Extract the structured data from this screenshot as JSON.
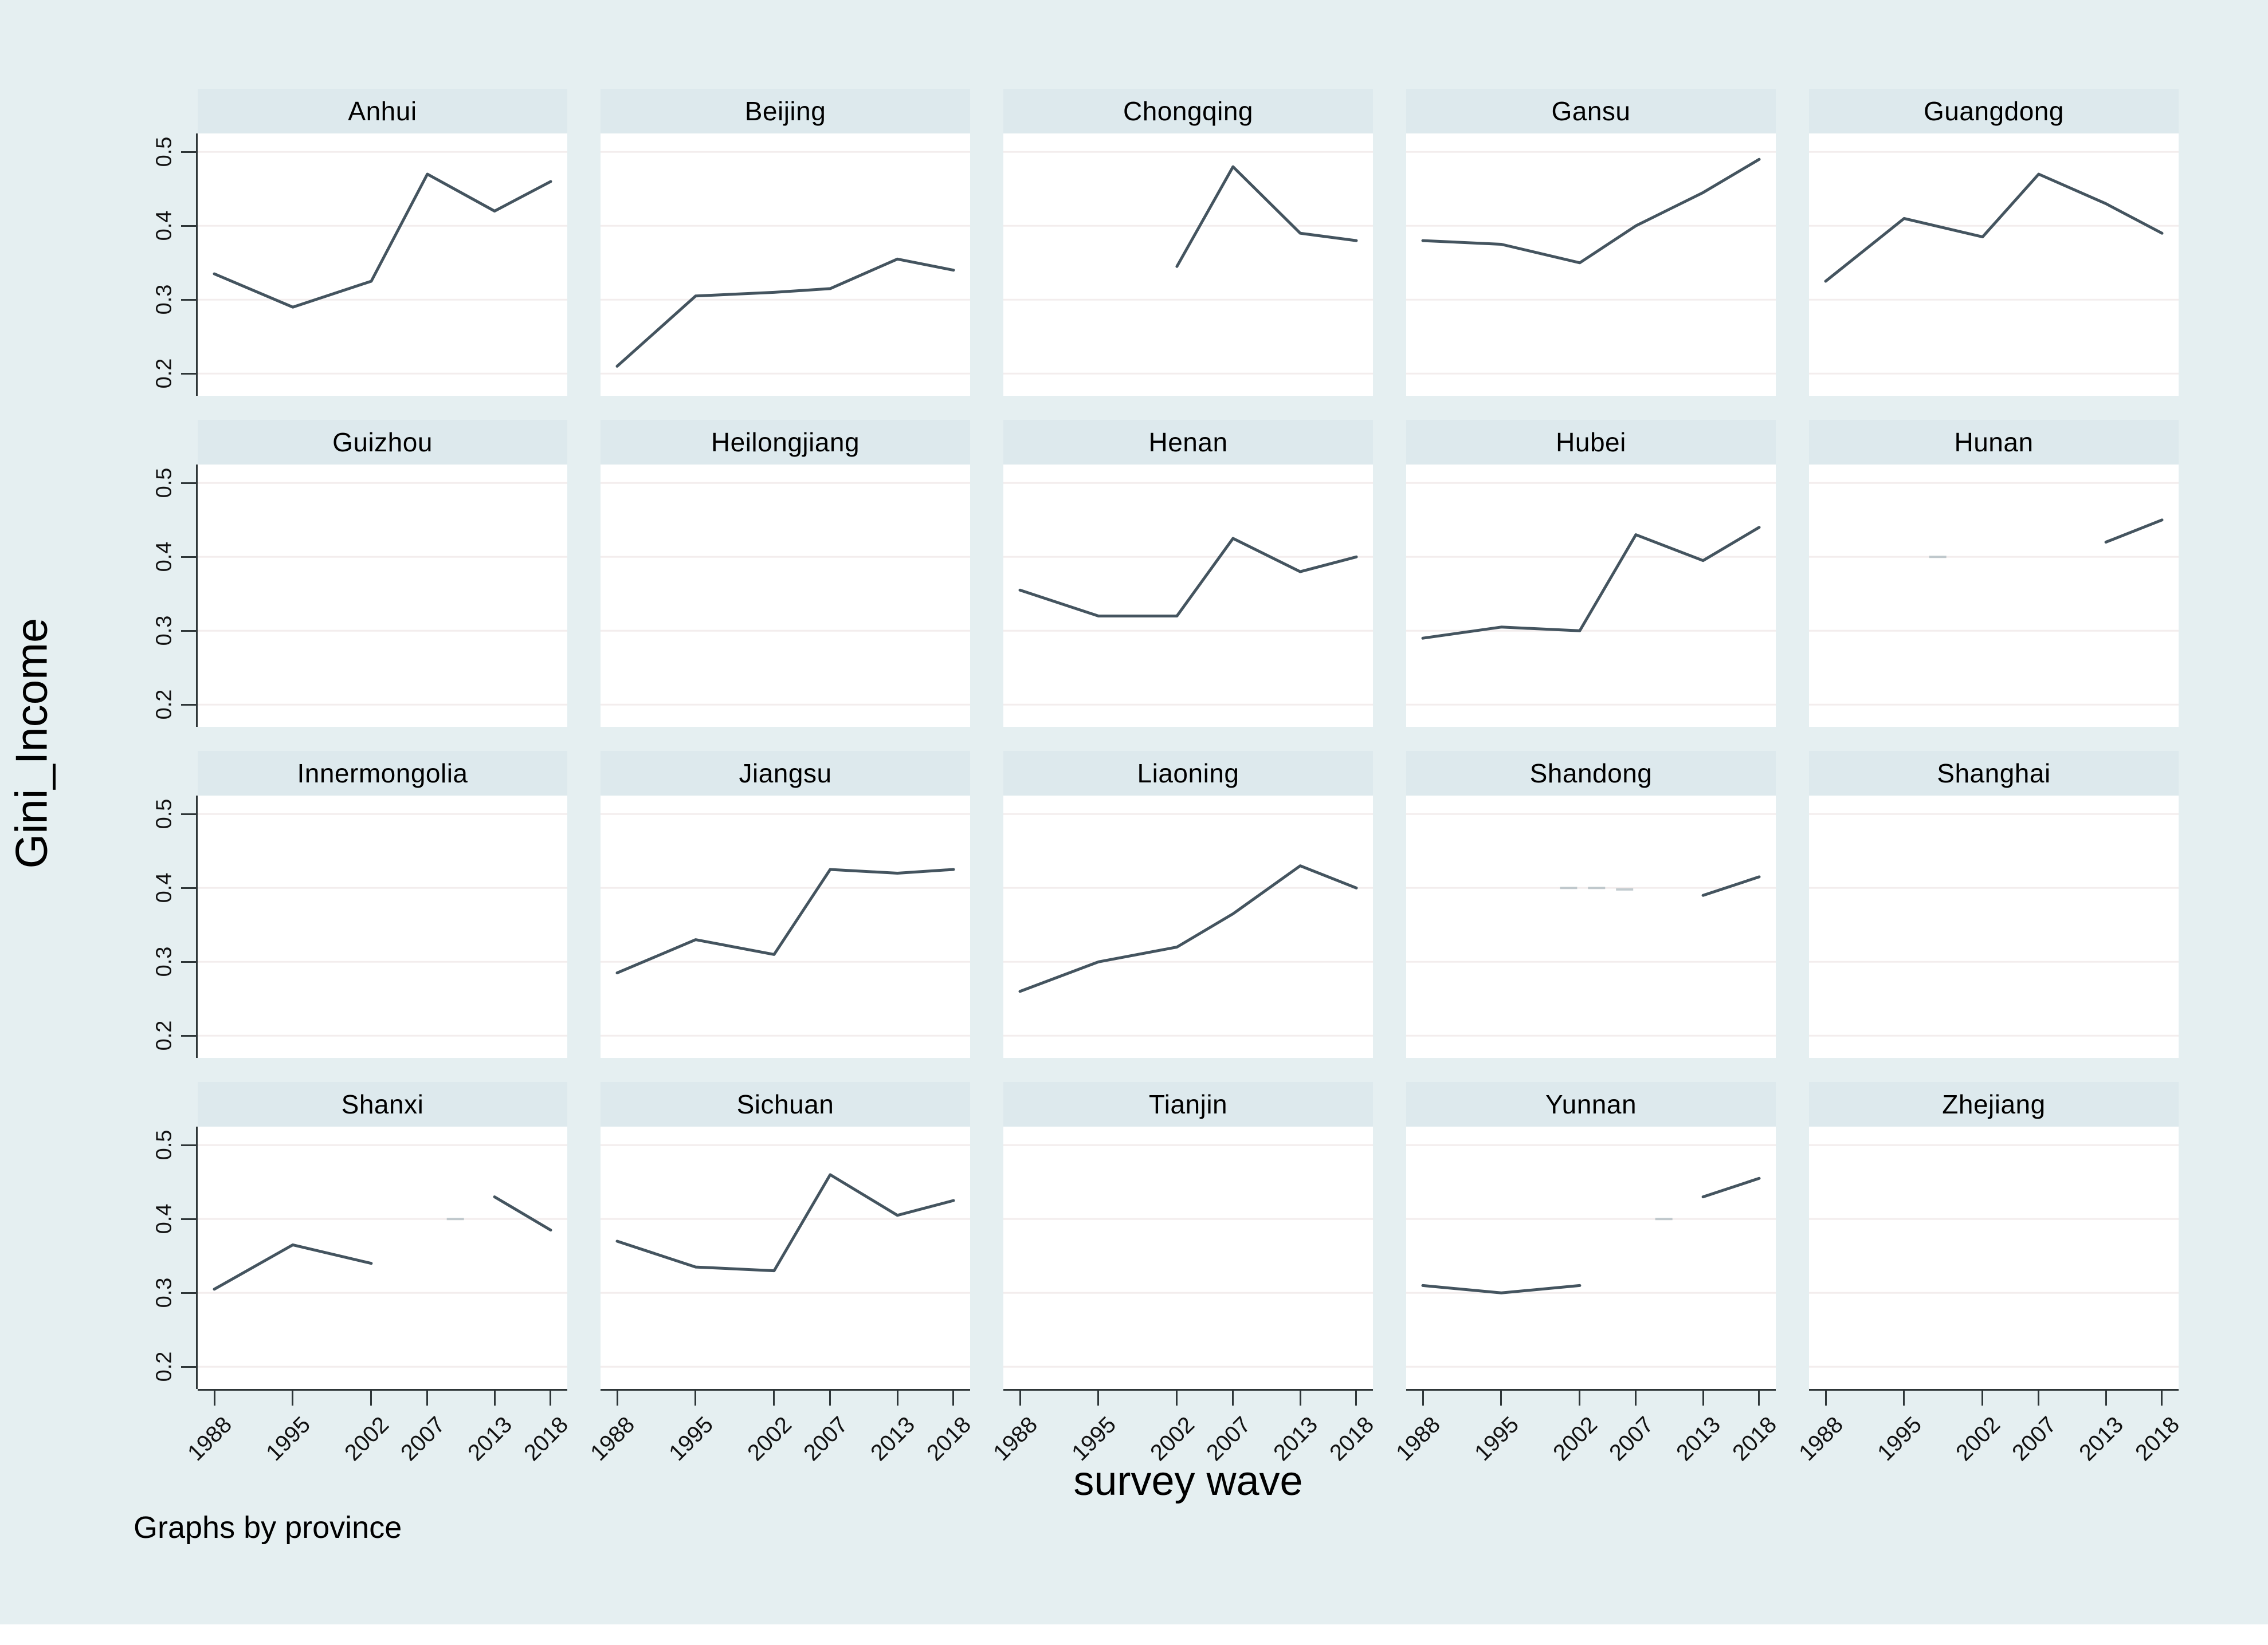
{
  "figure": {
    "ylabel": "Gini_Income",
    "xlabel": "survey wave",
    "caption": "Graphs by province",
    "colors": {
      "background": "#e5eff1",
      "panel_header": "#dde9ed",
      "plot_background": "#ffffff",
      "gridline": "#f3eded",
      "axis": "#2e3638",
      "series_line": "#44545f",
      "ghost_mark": "#b3bfc4",
      "text": "#000000"
    }
  },
  "chart_data": {
    "type": "line",
    "title": "",
    "xlabel": "survey wave",
    "ylabel": "Gini_Income",
    "facet_by": "province",
    "layout": {
      "rows": 4,
      "cols": 5,
      "grid": "on",
      "legend": "none"
    },
    "x": [
      1988,
      1995,
      2002,
      2007,
      2013,
      2018
    ],
    "xtick_labels": [
      "1988",
      "1995",
      "2002",
      "2007",
      "2013",
      "2018"
    ],
    "ylim": [
      0.17,
      0.525
    ],
    "yticks": [
      0.5,
      0.4,
      0.3,
      0.2
    ],
    "ytick_labels": [
      "0.5",
      "0.4",
      "0.3",
      "0.2"
    ],
    "series": [
      {
        "name": "Anhui",
        "values": [
          0.335,
          0.29,
          0.325,
          0.47,
          0.42,
          0.46
        ],
        "ghost_marks": []
      },
      {
        "name": "Beijing",
        "values": [
          0.21,
          0.305,
          0.31,
          0.315,
          0.355,
          0.34
        ],
        "ghost_marks": []
      },
      {
        "name": "Chongqing",
        "values": [
          null,
          null,
          0.345,
          0.48,
          0.39,
          0.38
        ],
        "ghost_marks": []
      },
      {
        "name": "Gansu",
        "values": [
          0.38,
          0.375,
          0.35,
          0.4,
          0.445,
          0.49
        ],
        "ghost_marks": []
      },
      {
        "name": "Guangdong",
        "values": [
          0.325,
          0.41,
          0.385,
          0.47,
          0.43,
          0.39
        ],
        "ghost_marks": []
      },
      {
        "name": "Guizhou",
        "values": [
          null,
          null,
          null,
          null,
          null,
          null
        ],
        "ghost_marks": []
      },
      {
        "name": "Heilongjiang",
        "values": [
          null,
          null,
          null,
          null,
          null,
          null
        ],
        "ghost_marks": []
      },
      {
        "name": "Henan",
        "values": [
          0.355,
          0.32,
          0.32,
          0.425,
          0.38,
          0.4
        ],
        "ghost_marks": []
      },
      {
        "name": "Hubei",
        "values": [
          0.29,
          0.305,
          0.3,
          0.43,
          0.395,
          0.44
        ],
        "ghost_marks": []
      },
      {
        "name": "Hunan",
        "values": [
          null,
          null,
          null,
          null,
          0.42,
          0.45
        ],
        "ghost_marks": [
          [
            1998,
            0.4
          ]
        ]
      },
      {
        "name": "Innermongolia",
        "values": [
          null,
          null,
          null,
          null,
          null,
          null
        ],
        "ghost_marks": []
      },
      {
        "name": "Jiangsu",
        "values": [
          0.285,
          0.33,
          0.31,
          0.425,
          0.42,
          0.425
        ],
        "ghost_marks": []
      },
      {
        "name": "Liaoning",
        "values": [
          0.26,
          0.3,
          0.32,
          0.365,
          0.43,
          0.4
        ],
        "ghost_marks": []
      },
      {
        "name": "Shandong",
        "values": [
          null,
          null,
          null,
          null,
          0.39,
          0.415
        ],
        "ghost_marks": [
          [
            2001,
            0.4
          ],
          [
            2003.5,
            0.4
          ],
          [
            2006,
            0.398
          ]
        ]
      },
      {
        "name": "Shanghai",
        "values": [
          null,
          null,
          null,
          null,
          null,
          null
        ],
        "ghost_marks": []
      },
      {
        "name": "Shanxi",
        "values": [
          0.305,
          0.365,
          0.34,
          null,
          0.43,
          0.385
        ],
        "ghost_marks": [
          [
            2009.5,
            0.4
          ]
        ]
      },
      {
        "name": "Sichuan",
        "values": [
          0.37,
          0.335,
          0.33,
          0.46,
          0.405,
          0.425
        ],
        "ghost_marks": []
      },
      {
        "name": "Tianjin",
        "values": [
          null,
          null,
          null,
          null,
          null,
          null
        ],
        "ghost_marks": []
      },
      {
        "name": "Yunnan",
        "values": [
          0.31,
          0.3,
          0.31,
          null,
          0.43,
          0.455
        ],
        "ghost_marks": [
          [
            2009.5,
            0.4
          ]
        ]
      },
      {
        "name": "Zhejiang",
        "values": [
          null,
          null,
          null,
          null,
          null,
          null
        ],
        "ghost_marks": []
      }
    ]
  }
}
